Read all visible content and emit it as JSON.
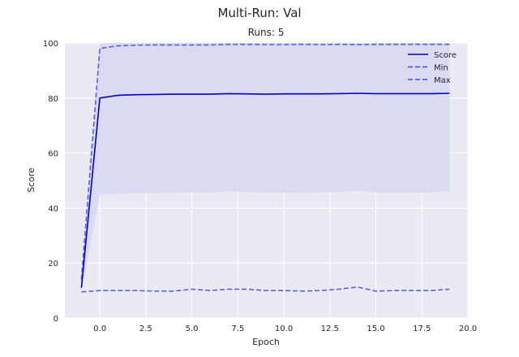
{
  "chart_data": {
    "type": "line",
    "title": "Multi-Run: Val",
    "subtitle": "Runs: 5",
    "xlabel": "Epoch",
    "ylabel": "Score",
    "xlim": [
      -1.9,
      20
    ],
    "ylim": [
      0,
      100
    ],
    "xticks": [
      0.0,
      2.5,
      5.0,
      7.5,
      10.0,
      12.5,
      15.0,
      17.5,
      20.0
    ],
    "xtick_labels": [
      "0.0",
      "2.5",
      "5.0",
      "7.5",
      "10.0",
      "12.5",
      "15.0",
      "17.5",
      "20.0"
    ],
    "yticks": [
      0,
      20,
      40,
      60,
      80,
      100
    ],
    "ytick_labels": [
      "0",
      "20",
      "40",
      "60",
      "80",
      "100"
    ],
    "grid": true,
    "legend_position": "top-right",
    "x": [
      -1,
      0,
      1,
      2,
      3,
      4,
      5,
      6,
      7,
      8,
      9,
      10,
      11,
      12,
      13,
      14,
      15,
      16,
      17,
      18,
      19
    ],
    "series": [
      {
        "name": "Score",
        "style": "solid",
        "color": "#0000cc",
        "values": [
          11,
          80,
          81,
          81.2,
          81.3,
          81.4,
          81.4,
          81.4,
          81.6,
          81.5,
          81.4,
          81.5,
          81.5,
          81.5,
          81.6,
          81.7,
          81.6,
          81.6,
          81.6,
          81.6,
          81.7
        ]
      },
      {
        "name": "Min",
        "style": "dashed",
        "color": "#4444ee",
        "values": [
          9.5,
          10,
          10,
          10,
          9.8,
          9.8,
          10.5,
          10,
          10.5,
          10.5,
          10,
          10,
          9.8,
          10,
          10.5,
          11.3,
          9.8,
          10,
          10,
          10,
          10.5
        ]
      },
      {
        "name": "Max",
        "style": "dashed",
        "color": "#4444ee",
        "values": [
          14,
          98,
          99,
          99.2,
          99.3,
          99.3,
          99.3,
          99.3,
          99.5,
          99.5,
          99.4,
          99.4,
          99.5,
          99.4,
          99.5,
          99.4,
          99.5,
          99.5,
          99.5,
          99.5,
          99.5
        ]
      }
    ],
    "band": {
      "color": "#dadaf2",
      "lower": [
        9.5,
        45,
        45.2,
        45.4,
        45.5,
        45.5,
        45.7,
        45.6,
        45.9,
        45.8,
        45.6,
        45.6,
        45.5,
        45.7,
        45.8,
        46.3,
        45.6,
        45.6,
        45.6,
        45.7,
        46
      ],
      "upper": [
        14,
        100,
        100,
        100,
        100,
        100,
        100,
        100,
        100,
        100,
        100,
        100,
        100,
        100,
        100,
        100,
        100,
        100,
        100,
        100,
        100
      ]
    },
    "colors": {
      "plot_background": "#eaeaf2",
      "grid": "#ffffff"
    }
  }
}
